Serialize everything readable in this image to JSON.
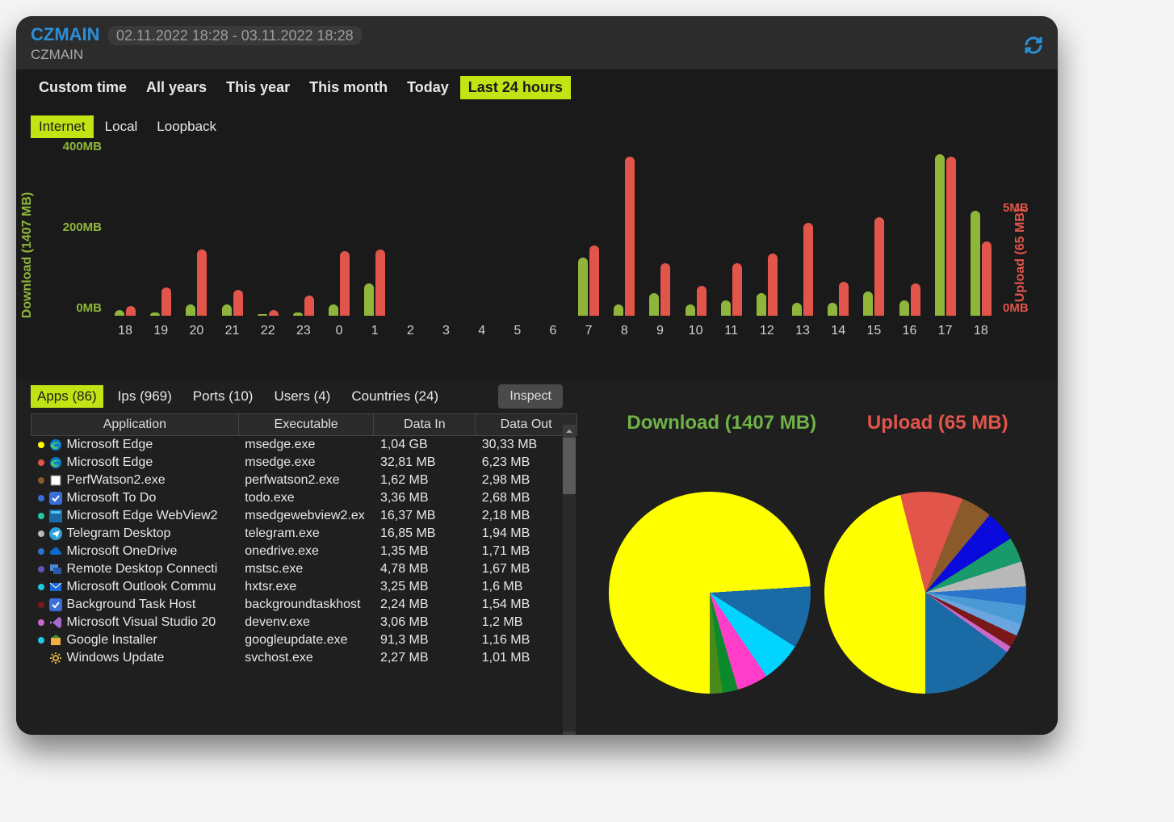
{
  "header": {
    "title": "CZMAIN",
    "daterange": "02.11.2022 18:28 - 03.11.2022 18:28",
    "subtitle": "CZMAIN"
  },
  "time_tabs": [
    "Custom time",
    "All years",
    "This year",
    "This month",
    "Today",
    "Last 24 hours"
  ],
  "time_tabs_active": 5,
  "net_tabs": [
    "Internet",
    "Local",
    "Loopback"
  ],
  "net_tabs_active": 0,
  "chart": {
    "type": "bar",
    "left_axis_label": "Download (1407 MB)",
    "right_axis_label": "Upload (65 MB)",
    "left_color": "#8fb63a",
    "right_color": "#e2554a",
    "background": "#1a1a1a",
    "left_ticks": [
      {
        "label": "400MB",
        "pos": 0
      },
      {
        "label": "200MB",
        "pos": 50
      },
      {
        "label": "0MB",
        "pos": 100
      }
    ],
    "right_ticks": [
      {
        "label": "5MB",
        "pos": 38
      },
      {
        "label": "0MB",
        "pos": 100
      }
    ],
    "left_max": 430,
    "right_max": 8,
    "hours": [
      {
        "h": "18",
        "dl": 15,
        "ul": 0.5
      },
      {
        "h": "19",
        "dl": 8,
        "ul": 1.4
      },
      {
        "h": "20",
        "dl": 30,
        "ul": 3.3
      },
      {
        "h": "21",
        "dl": 30,
        "ul": 1.3
      },
      {
        "h": "22",
        "dl": 5,
        "ul": 0.3
      },
      {
        "h": "23",
        "dl": 8,
        "ul": 1.0
      },
      {
        "h": "0",
        "dl": 30,
        "ul": 3.2
      },
      {
        "h": "1",
        "dl": 85,
        "ul": 3.3
      },
      {
        "h": "2",
        "dl": 0,
        "ul": 0
      },
      {
        "h": "3",
        "dl": 0,
        "ul": 0
      },
      {
        "h": "4",
        "dl": 0,
        "ul": 0
      },
      {
        "h": "5",
        "dl": 0,
        "ul": 0
      },
      {
        "h": "6",
        "dl": 0,
        "ul": 0
      },
      {
        "h": "7",
        "dl": 155,
        "ul": 3.5
      },
      {
        "h": "8",
        "dl": 30,
        "ul": 7.9
      },
      {
        "h": "9",
        "dl": 60,
        "ul": 2.6
      },
      {
        "h": "10",
        "dl": 30,
        "ul": 1.5
      },
      {
        "h": "11",
        "dl": 40,
        "ul": 2.6
      },
      {
        "h": "12",
        "dl": 60,
        "ul": 3.1
      },
      {
        "h": "13",
        "dl": 35,
        "ul": 4.6
      },
      {
        "h": "14",
        "dl": 35,
        "ul": 1.7
      },
      {
        "h": "15",
        "dl": 65,
        "ul": 4.9
      },
      {
        "h": "16",
        "dl": 40,
        "ul": 1.6
      },
      {
        "h": "17",
        "dl": 430,
        "ul": 7.9
      },
      {
        "h": "18",
        "dl": 280,
        "ul": 3.7
      }
    ]
  },
  "data_tabs": [
    "Apps (86)",
    "Ips (969)",
    "Ports (10)",
    "Users (4)",
    "Countries (24)"
  ],
  "data_tabs_active": 0,
  "inspect_label": "Inspect",
  "table": {
    "columns": [
      "Application",
      "Executable",
      "Data In",
      "Data Out"
    ],
    "rows": [
      {
        "dot": "#ffff00",
        "icon": "edge",
        "name": "Microsoft Edge",
        "exe": "msedge.exe",
        "in": "1,04 GB",
        "out": "30,33 MB"
      },
      {
        "dot": "#e2554a",
        "icon": "edge",
        "name": "Microsoft Edge",
        "exe": "msedge.exe",
        "in": "32,81 MB",
        "out": "6,23 MB"
      },
      {
        "dot": "#8a5a2a",
        "icon": "box",
        "name": "PerfWatson2.exe",
        "exe": "perfwatson2.exe",
        "in": "1,62 MB",
        "out": "2,98 MB"
      },
      {
        "dot": "#3a6fd8",
        "icon": "check",
        "name": "Microsoft To Do",
        "exe": "todo.exe",
        "in": "3,36 MB",
        "out": "2,68 MB"
      },
      {
        "dot": "#1ec9a4",
        "icon": "webview",
        "name": "Microsoft Edge WebView2",
        "exe": "msedgewebview2.ex",
        "in": "16,37 MB",
        "out": "2,18 MB"
      },
      {
        "dot": "#b8b8b8",
        "icon": "telegram",
        "name": "Telegram Desktop",
        "exe": "telegram.exe",
        "in": "16,85 MB",
        "out": "1,94 MB"
      },
      {
        "dot": "#2a74c9",
        "icon": "cloud",
        "name": "Microsoft OneDrive",
        "exe": "onedrive.exe",
        "in": "1,35 MB",
        "out": "1,71 MB"
      },
      {
        "dot": "#6a4fb5",
        "icon": "remote",
        "name": "Remote Desktop Connecti",
        "exe": "mstsc.exe",
        "in": "4,78 MB",
        "out": "1,67 MB"
      },
      {
        "dot": "#1ec9e4",
        "icon": "mail",
        "name": "Microsoft Outlook Commu",
        "exe": "hxtsr.exe",
        "in": "3,25 MB",
        "out": "1,6 MB"
      },
      {
        "dot": "#7a1818",
        "icon": "check2",
        "name": "Background Task Host",
        "exe": "backgroundtaskhost",
        "in": "2,24 MB",
        "out": "1,54 MB"
      },
      {
        "dot": "#c96ac9",
        "icon": "vs",
        "name": "Microsoft Visual Studio 20",
        "exe": "devenv.exe",
        "in": "3,06 MB",
        "out": "1,2 MB"
      },
      {
        "dot": "#1ec9e4",
        "icon": "google",
        "name": "Google Installer",
        "exe": "googleupdate.exe",
        "in": "91,3 MB",
        "out": "1,16 MB"
      },
      {
        "dot": "none",
        "icon": "gear",
        "name": "Windows Update",
        "exe": "svchost.exe",
        "in": "2,27 MB",
        "out": "1,01 MB"
      }
    ]
  },
  "pies": {
    "download_title": "Download (1407 MB)",
    "upload_title": "Upload (65 MB)",
    "download_slices": [
      {
        "color": "#ffff00",
        "pct": 74
      },
      {
        "color": "#1a6aa5",
        "pct": 10
      },
      {
        "color": "#00d4ff",
        "pct": 6.5
      },
      {
        "color": "#ff3dc9",
        "pct": 5
      },
      {
        "color": "#0a8a2a",
        "pct": 2.5
      },
      {
        "color": "#4a8a1a",
        "pct": 2
      }
    ],
    "upload_slices": [
      {
        "color": "#ffff00",
        "pct": 46
      },
      {
        "color": "#e2554a",
        "pct": 10
      },
      {
        "color": "#8a5a2a",
        "pct": 5
      },
      {
        "color": "#0a0add",
        "pct": 5
      },
      {
        "color": "#189a6a",
        "pct": 4
      },
      {
        "color": "#b8b8b8",
        "pct": 4
      },
      {
        "color": "#2a74c9",
        "pct": 3
      },
      {
        "color": "#4a9ad6",
        "pct": 3
      },
      {
        "color": "#6aa5e0",
        "pct": 2
      },
      {
        "color": "#7a1818",
        "pct": 2
      },
      {
        "color": "#c96ac9",
        "pct": 1
      },
      {
        "color": "#1a6aa5",
        "pct": 15
      }
    ]
  },
  "colors": {
    "accent_green": "#c1e514",
    "download_bar": "#8fb63a",
    "upload_bar": "#e2554a",
    "header_blue": "#2b8fd8"
  }
}
